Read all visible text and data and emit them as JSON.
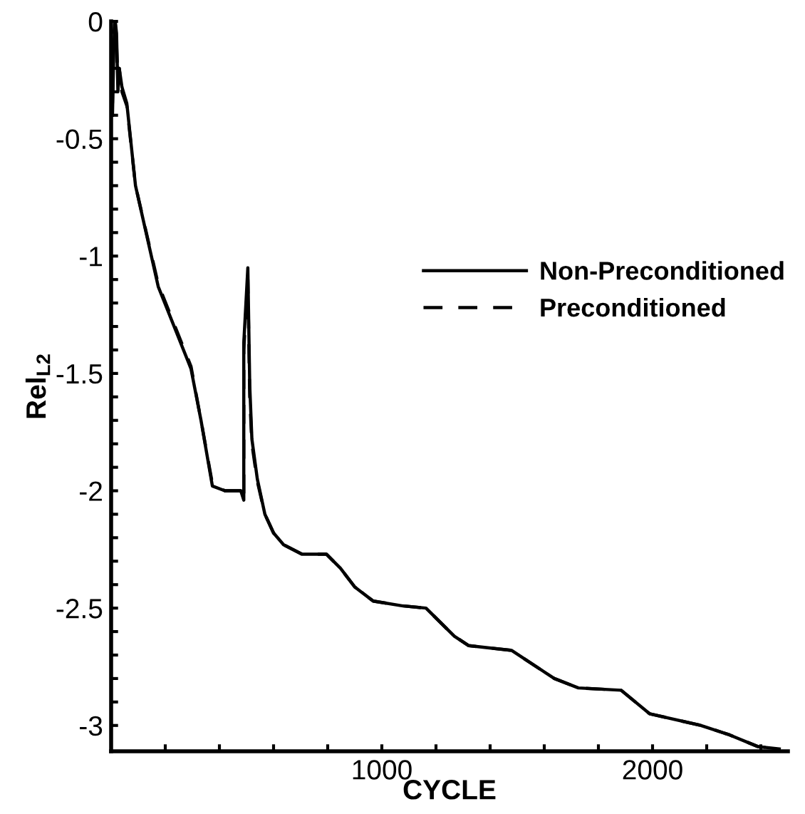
{
  "chart_data": {
    "type": "line",
    "xlabel": "CYCLE",
    "ylabel": "Rel$_{L2}$",
    "xlim": [
      0,
      2500
    ],
    "ylim": [
      -3.11,
      0
    ],
    "xticks": [
      {
        "value": 200,
        "label": null
      },
      {
        "value": 400,
        "label": null
      },
      {
        "value": 600,
        "label": null
      },
      {
        "value": 800,
        "label": null
      },
      1000,
      {
        "value": 1200,
        "label": null
      },
      {
        "value": 1400,
        "label": null
      },
      {
        "value": 1600,
        "label": null
      },
      {
        "value": 1800,
        "label": null
      },
      2000,
      {
        "value": 2200,
        "label": null
      },
      {
        "value": 2400,
        "label": null
      }
    ],
    "yticks": [
      -3,
      {
        "value": -2.9,
        "label": null
      },
      {
        "value": -2.8,
        "label": null
      },
      {
        "value": -2.7,
        "label": null
      },
      {
        "value": -2.6,
        "label": null
      },
      -2.5,
      {
        "value": -2.4,
        "label": null
      },
      {
        "value": -2.3,
        "label": null
      },
      {
        "value": -2.2,
        "label": null
      },
      {
        "value": -2.1,
        "label": null
      },
      -2,
      {
        "value": -1.9,
        "label": null
      },
      {
        "value": -1.8,
        "label": null
      },
      {
        "value": -1.7,
        "label": null
      },
      {
        "value": -1.6,
        "label": null
      },
      -1.5,
      {
        "value": -1.4,
        "label": null
      },
      {
        "value": -1.3,
        "label": null
      },
      {
        "value": -1.2,
        "label": null
      },
      {
        "value": -1.1,
        "label": null
      },
      -1,
      {
        "value": -0.9,
        "label": null
      },
      {
        "value": -0.8,
        "label": null
      },
      {
        "value": -0.7,
        "label": null
      },
      {
        "value": -0.6,
        "label": null
      },
      -0.5,
      {
        "value": -0.4,
        "label": null
      },
      {
        "value": -0.3,
        "label": null
      },
      {
        "value": -0.2,
        "label": null
      },
      {
        "value": -0.1,
        "label": null
      },
      0
    ],
    "grid": false,
    "legend": "right",
    "marker": "none",
    "series": [
      {
        "name": "Non-Preconditioned",
        "color": "#000000",
        "line_style": "solid",
        "x": [
          5,
          10,
          15,
          20,
          25,
          30,
          40,
          58,
          90,
          174,
          295,
          332,
          374,
          420,
          479,
          490,
          490,
          505,
          512,
          520,
          540,
          568,
          600,
          637,
          705,
          795,
          847,
          900,
          968,
          1074,
          1163,
          1268,
          1321,
          1479,
          1637,
          1726,
          1884,
          1989,
          2179,
          2284,
          2389,
          2468
        ],
        "values": [
          -0.4,
          -0.1,
          0,
          -0.05,
          -0.3,
          -0.2,
          -0.28,
          -0.35,
          -0.7,
          -1.13,
          -1.48,
          -1.7,
          -1.98,
          -2.0,
          -2.0,
          -2.04,
          -1.37,
          -1.05,
          -1.55,
          -1.78,
          -1.95,
          -2.1,
          -2.18,
          -2.23,
          -2.27,
          -2.27,
          -2.33,
          -2.41,
          -2.47,
          -2.49,
          -2.5,
          -2.62,
          -2.66,
          -2.68,
          -2.8,
          -2.84,
          -2.85,
          -2.95,
          -3.0,
          -3.04,
          -3.09,
          -3.1
        ]
      },
      {
        "name": "Preconditioned",
        "color": "#000000",
        "line_style": "dashed",
        "x": [
          5,
          10,
          15,
          20,
          25,
          30,
          40,
          58,
          90,
          174,
          295,
          332,
          374,
          420,
          479,
          490,
          490,
          505,
          512,
          520,
          540,
          568,
          600,
          637,
          705,
          795,
          847,
          900,
          968,
          1074,
          1163,
          1268,
          1321,
          1479,
          1637,
          1726,
          1884,
          1989,
          2179,
          2284,
          2389,
          2468
        ],
        "values": [
          -0.35,
          -0.05,
          0,
          -0.1,
          -0.25,
          -0.2,
          -0.3,
          -0.36,
          -0.7,
          -1.12,
          -1.47,
          -1.7,
          -1.97,
          -2.0,
          -2.0,
          -2.04,
          -1.4,
          -1.1,
          -1.6,
          -1.8,
          -1.96,
          -2.1,
          -2.18,
          -2.23,
          -2.27,
          -2.27,
          -2.33,
          -2.41,
          -2.47,
          -2.49,
          -2.5,
          -2.62,
          -2.66,
          -2.68,
          -2.8,
          -2.84,
          -2.85,
          -2.95,
          -3.0,
          -3.04,
          -3.09,
          -3.1
        ]
      }
    ]
  }
}
